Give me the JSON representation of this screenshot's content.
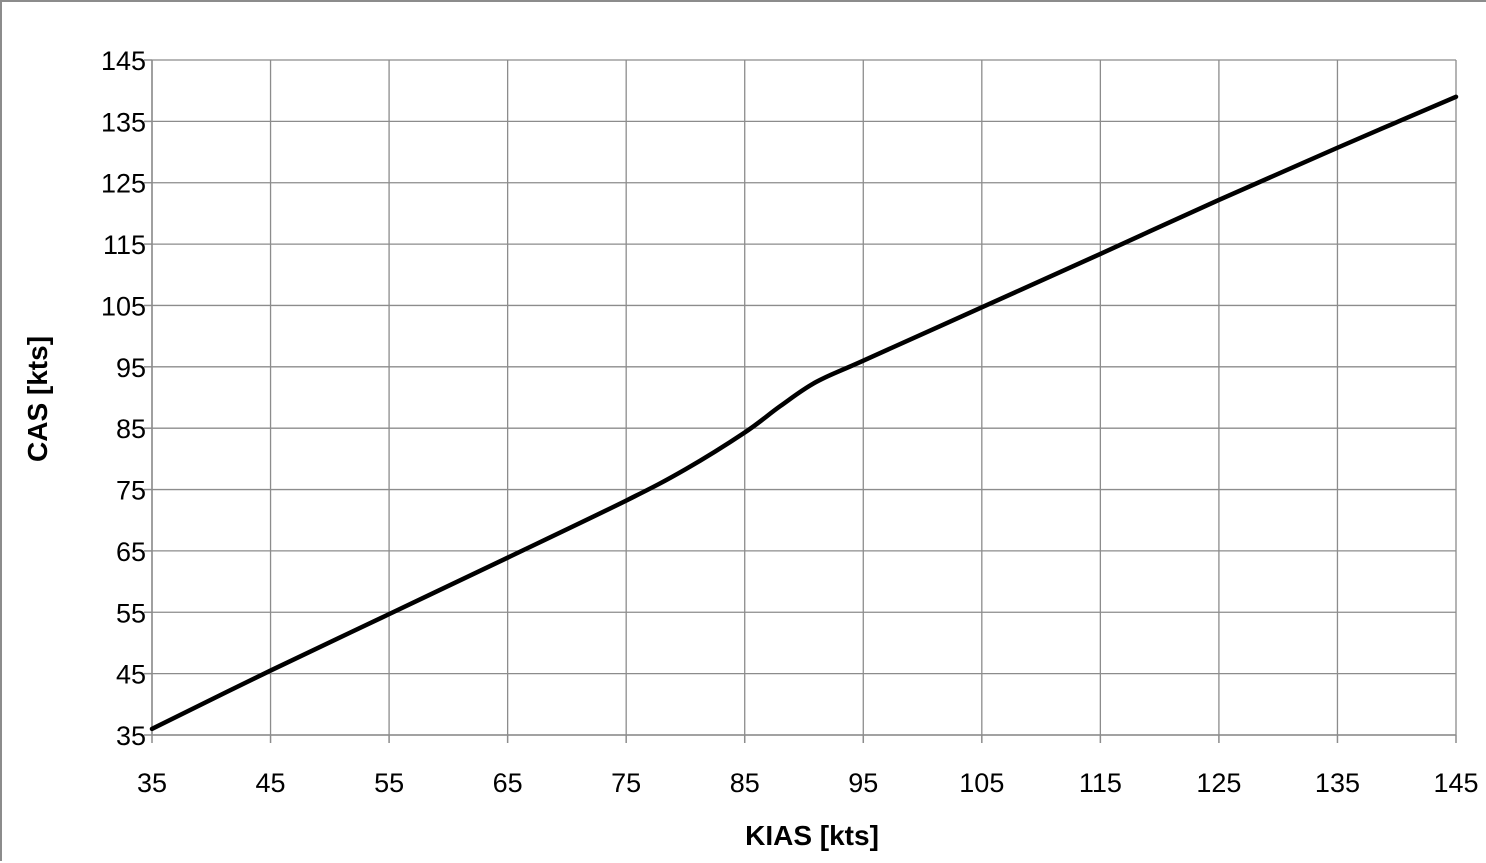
{
  "chart_data": {
    "type": "line",
    "title": "",
    "xlabel": "KIAS [kts]",
    "ylabel": "CAS [kts]",
    "xlim": [
      35,
      145
    ],
    "ylim": [
      35,
      145
    ],
    "x_ticks": [
      35,
      45,
      55,
      65,
      75,
      85,
      95,
      105,
      115,
      125,
      135,
      145
    ],
    "y_ticks": [
      35,
      45,
      55,
      65,
      75,
      85,
      95,
      105,
      115,
      125,
      135,
      145
    ],
    "grid": true,
    "legend": "none",
    "series": [
      {
        "color": "#000000",
        "x": [
          35,
          45,
          55,
          65,
          75,
          80,
          85,
          88,
          91,
          95,
          105,
          115,
          125,
          135,
          145
        ],
        "y": [
          36,
          45.5,
          54.7,
          63.9,
          73.2,
          78.3,
          84.3,
          88.6,
          92.5,
          96.0,
          104.7,
          113.4,
          122.2,
          130.7,
          139.0
        ]
      }
    ]
  }
}
